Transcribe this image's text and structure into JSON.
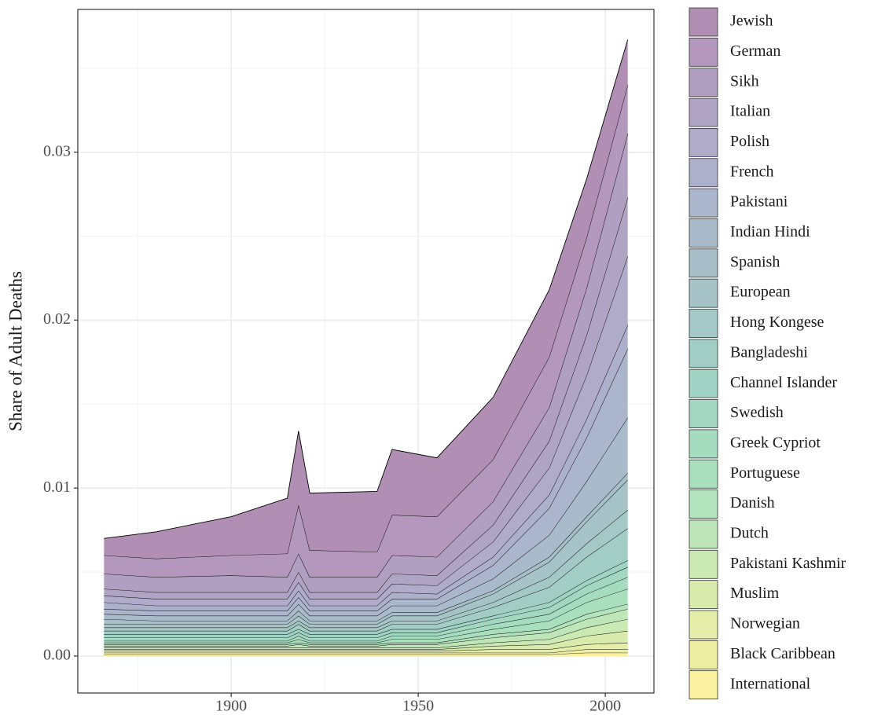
{
  "chart_data": {
    "type": "stacked-area",
    "y_label": "Share of Adult Deaths",
    "x": [
      1866,
      1880,
      1900,
      1915,
      1918,
      1921,
      1939,
      1943,
      1955,
      1970,
      1985,
      1995,
      2006
    ],
    "xlim": [
      1859,
      2013
    ],
    "xticks": [
      1900,
      1950,
      2000
    ],
    "xminor": [
      1875,
      1925,
      1975
    ],
    "ylim": [
      -0.0022,
      0.0385
    ],
    "yticks": [
      {
        "value": 0,
        "label": "0.00"
      },
      0.01,
      0.02,
      0.03
    ],
    "yminor": [
      0.005,
      0.015,
      0.025,
      0.035
    ],
    "grid": true,
    "legend": "right",
    "series": [
      {
        "name": "Jewish",
        "color": "#b18fb5",
        "values": [
          0.001,
          0.0016,
          0.0023,
          0.0033,
          0.0044,
          0.0034,
          0.0036,
          0.0039,
          0.0035,
          0.0037,
          0.004,
          0.0035,
          0.0027
        ]
      },
      {
        "name": "German",
        "color": "#b397bd",
        "values": [
          0.0011,
          0.0011,
          0.0012,
          0.0014,
          0.0029,
          0.0016,
          0.0015,
          0.0024,
          0.0024,
          0.0025,
          0.003,
          0.003,
          0.0029
        ]
      },
      {
        "name": "Sikh",
        "color": "#b19fc1",
        "values": [
          0.0009,
          0.0009,
          0.001,
          0.0009,
          0.0011,
          0.0009,
          0.0009,
          0.0011,
          0.0011,
          0.0014,
          0.002,
          0.0028,
          0.0038
        ]
      },
      {
        "name": "Italian",
        "color": "#b0a4c4",
        "values": [
          0.0004,
          0.0004,
          0.0004,
          0.0004,
          0.0006,
          0.0004,
          0.0004,
          0.0006,
          0.0006,
          0.001,
          0.0016,
          0.0024,
          0.0035
        ]
      },
      {
        "name": "Polish",
        "color": "#b0abc8",
        "values": [
          0.0004,
          0.0004,
          0.0004,
          0.0004,
          0.0005,
          0.0004,
          0.0004,
          0.0005,
          0.0005,
          0.0009,
          0.0016,
          0.0026,
          0.0041
        ]
      },
      {
        "name": "French",
        "color": "#adb0cb",
        "values": [
          0.0004,
          0.0003,
          0.0003,
          0.0003,
          0.0004,
          0.0003,
          0.0003,
          0.0004,
          0.0003,
          0.0005,
          0.0008,
          0.0011,
          0.0014
        ]
      },
      {
        "name": "Pakistani",
        "color": "#abb6cc",
        "values": [
          0.0003,
          0.0003,
          0.0003,
          0.0003,
          0.0004,
          0.0003,
          0.0003,
          0.0004,
          0.0004,
          0.0008,
          0.0016,
          0.0026,
          0.0041
        ]
      },
      {
        "name": "Indian Hindi",
        "color": "#a9bacb",
        "values": [
          0.0003,
          0.0003,
          0.0003,
          0.0003,
          0.0004,
          0.0003,
          0.0003,
          0.0004,
          0.0004,
          0.0007,
          0.0013,
          0.0021,
          0.0033
        ]
      },
      {
        "name": "Spanish",
        "color": "#a8bfc9",
        "values": [
          0.0003,
          0.0002,
          0.0002,
          0.0002,
          0.0003,
          0.0002,
          0.0002,
          0.0002,
          0.0002,
          0.0002,
          0.0003,
          0.0003,
          0.0004
        ]
      },
      {
        "name": "European",
        "color": "#a6c4c8",
        "values": [
          0.0002,
          0.0002,
          0.0002,
          0.0002,
          0.0003,
          0.0002,
          0.0002,
          0.0003,
          0.0003,
          0.0005,
          0.0009,
          0.0013,
          0.0018
        ]
      },
      {
        "name": "Hong Kongese",
        "color": "#a3c8c6",
        "values": [
          0.0002,
          0.0002,
          0.0002,
          0.0002,
          0.0002,
          0.0002,
          0.0002,
          0.0002,
          0.0002,
          0.0003,
          0.0006,
          0.0008,
          0.0011
        ]
      },
      {
        "name": "Bangladeshi",
        "color": "#a2cdc5",
        "values": [
          0.0002,
          0.0002,
          0.0002,
          0.0002,
          0.0003,
          0.0002,
          0.0002,
          0.0003,
          0.0003,
          0.0005,
          0.0009,
          0.0014,
          0.0019
        ]
      },
      {
        "name": "Channel Islander",
        "color": "#a0d3c3",
        "values": [
          0.0002,
          0.0002,
          0.0002,
          0.0002,
          0.0002,
          0.0002,
          0.0002,
          0.0002,
          0.0002,
          0.0002,
          0.0003,
          0.0003,
          0.0004
        ]
      },
      {
        "name": "Swedish",
        "color": "#a3d7c1",
        "values": [
          0.0002,
          0.0002,
          0.0002,
          0.0002,
          0.0002,
          0.0002,
          0.0002,
          0.0002,
          0.0002,
          0.0003,
          0.0004,
          0.0005,
          0.0006
        ]
      },
      {
        "name": "Greek Cypriot",
        "color": "#a5dcc0",
        "values": [
          0.0001,
          0.0001,
          0.0001,
          0.0001,
          0.0002,
          0.0001,
          0.0001,
          0.0002,
          0.0002,
          0.0003,
          0.0004,
          0.0005,
          0.0007
        ]
      },
      {
        "name": "Portuguese",
        "color": "#aadfbe",
        "values": [
          0.0001,
          0.0001,
          0.0001,
          0.0001,
          0.0002,
          0.0001,
          0.0001,
          0.0002,
          0.0002,
          0.0003,
          0.0005,
          0.0007,
          0.0009
        ]
      },
      {
        "name": "Danish",
        "color": "#b3e3bc",
        "values": [
          0.0001,
          0.0001,
          0.0001,
          0.0001,
          0.0001,
          0.0001,
          0.0001,
          0.0001,
          0.0001,
          0.0002,
          0.0002,
          0.0003,
          0.0003
        ]
      },
      {
        "name": "Dutch",
        "color": "#bfe6b8",
        "values": [
          0.0001,
          0.0001,
          0.0001,
          0.0001,
          0.0002,
          0.0001,
          0.0001,
          0.0002,
          0.0002,
          0.0003,
          0.0004,
          0.0005,
          0.0006
        ]
      },
      {
        "name": "Pakistani Kashmir",
        "color": "#cbe9b3",
        "values": [
          0.0001,
          0.0001,
          0.0001,
          0.0001,
          0.0001,
          0.0001,
          0.0001,
          0.0001,
          0.0001,
          0.0002,
          0.0003,
          0.0005,
          0.0007
        ]
      },
      {
        "name": "Muslim",
        "color": "#d8ebad",
        "values": [
          0.0001,
          0.0001,
          0.0001,
          0.0001,
          0.0001,
          0.0001,
          0.0001,
          0.0001,
          0.0001,
          0.0002,
          0.0003,
          0.0005,
          0.0007
        ]
      },
      {
        "name": "Norwegian",
        "color": "#e4eea8",
        "values": [
          0.0001,
          0.0001,
          0.0001,
          0.0001,
          0.0001,
          0.0001,
          0.0001,
          0.0001,
          0.0001,
          0.0002,
          0.0002,
          0.0003,
          0.0004
        ]
      },
      {
        "name": "Black Caribbean",
        "color": "#efefa3",
        "values": [
          0.0001,
          0.0001,
          0.0001,
          0.0001,
          0.0001,
          0.0001,
          0.0001,
          0.0001,
          0.0001,
          0.0001,
          0.0001,
          0.0002,
          0.0002
        ]
      },
      {
        "name": "International",
        "color": "#fbf2a1",
        "values": [
          0.0001,
          0.0001,
          0.0001,
          0.0001,
          0.0001,
          0.0001,
          0.0001,
          0.0001,
          0.0001,
          0.0001,
          0.0001,
          0.0002,
          0.0002
        ]
      }
    ]
  }
}
